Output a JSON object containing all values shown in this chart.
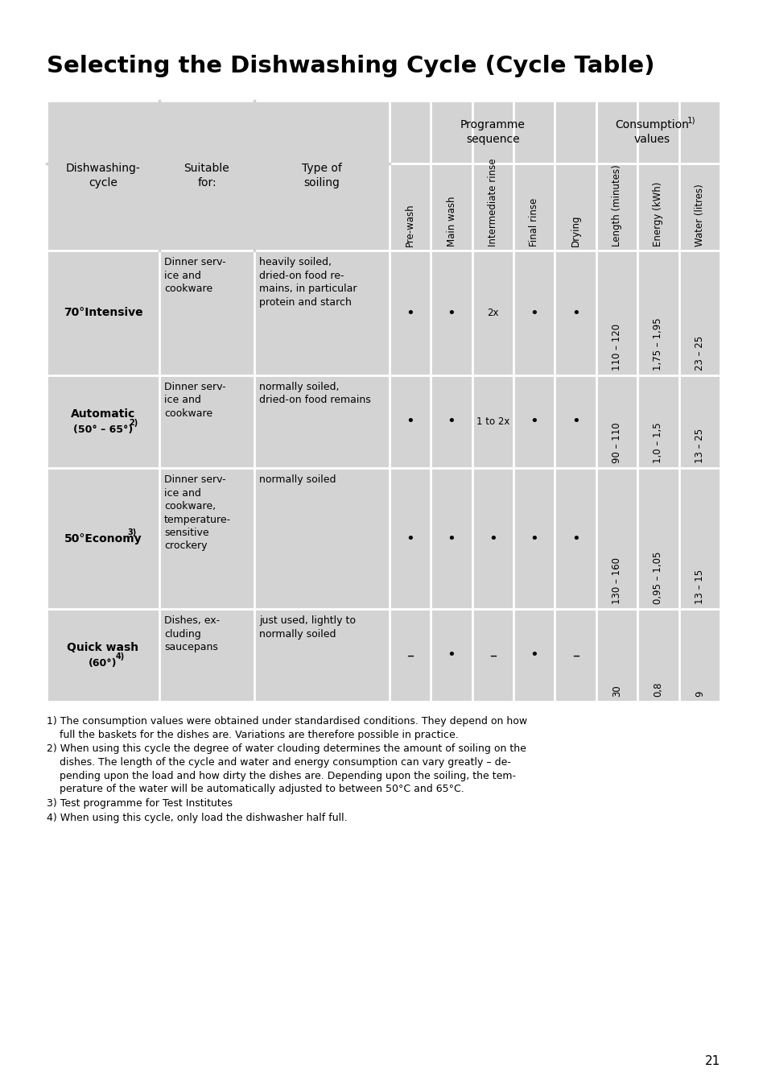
{
  "title": "Selecting the Dishwashing Cycle (Cycle Table)",
  "bg_color": "#ffffff",
  "table_bg": "#d3d3d3",
  "line_color": "#ffffff",
  "text_color": "#000000",
  "page_number": "21",
  "col_headers_rotated": [
    "Pre-wash",
    "Main wash",
    "Intermediate rinse",
    "Final rinse",
    "Drying",
    "Length (minutes)",
    "Energy (kWh)",
    "Water (litres)"
  ],
  "suitable_for": [
    "Dinner serv-\nice and\ncookware",
    "Dinner serv-\nice and\ncookware",
    "Dinner serv-\nice and\ncookware,\ntemperature-\nsensitive\ncrockery",
    "Dishes, ex-\ncluding\nsaucepans"
  ],
  "type_of_soiling": [
    "heavily soiled,\ndried-on food re-\nmains, in particular\nprotein and starch",
    "normally soiled,\ndried-on food remains",
    "normally soiled",
    "just used, lightly to\nnormally soiled"
  ],
  "programme_sequence": [
    [
      "•",
      "•",
      "2x",
      "•",
      "•"
    ],
    [
      "•",
      "•",
      "1 to 2x",
      "•",
      "•"
    ],
    [
      "•",
      "•",
      "•",
      "•",
      "•"
    ],
    [
      "–",
      "•",
      "–",
      "•",
      "–"
    ]
  ],
  "consumption_values": [
    [
      "110 – 120",
      "1,75 – 1,95",
      "23 – 25"
    ],
    [
      "90 – 110",
      "1,0 – 1,5",
      "13 – 25"
    ],
    [
      "130 – 160",
      "0,95 – 1,05",
      "13 – 15"
    ],
    [
      "30",
      "0,8",
      "9"
    ]
  ],
  "footnote1": "1) The consumption values were obtained under standardised conditions. They depend on how\n    full the baskets for the dishes are. Variations are therefore possible in practice.",
  "footnote2": "2) When using this cycle the degree of water clouding determines the amount of soiling on the\n    dishes. The length of the cycle and water and energy consumption can vary greatly – de-\n    pending upon the load and how dirty the dishes are. Depending upon the soiling, the tem-\n    perature of the water will be automatically adjusted to between 50°C and 65°C.",
  "footnote3": "3) Test programme for Test Institutes",
  "footnote4": "4) When using this cycle, only load the dishwasher half full."
}
